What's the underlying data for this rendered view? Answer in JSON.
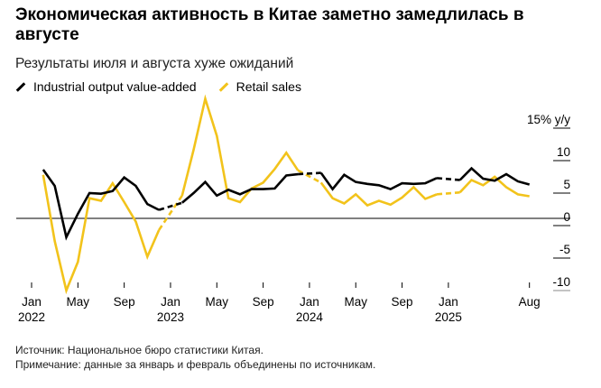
{
  "title": "Экономическая активность в Китае заметно замедлилась в августе",
  "subtitle": "Результаты июля и августа хуже ожиданий",
  "footer": {
    "source": "Источник: Национальное бюро статистики Китая.",
    "note": "Примечание: данные за январь и февраль объединены по источникам."
  },
  "chart_data": {
    "type": "line",
    "ylabel": "15% y/y",
    "ylim": [
      -10,
      15
    ],
    "yticks": [
      "15% y/y",
      "10",
      "5",
      "0",
      "-5",
      "-10"
    ],
    "ytick_values": [
      15,
      10,
      5,
      0,
      -5,
      -10
    ],
    "xticks": [
      {
        "month": "2022-01",
        "label": "Jan",
        "year": "2022"
      },
      {
        "month": "2022-05",
        "label": "May",
        "year": ""
      },
      {
        "month": "2022-09",
        "label": "Sep",
        "year": ""
      },
      {
        "month": "2023-01",
        "label": "Jan",
        "year": "2023"
      },
      {
        "month": "2023-05",
        "label": "May",
        "year": ""
      },
      {
        "month": "2023-09",
        "label": "Sep",
        "year": ""
      },
      {
        "month": "2024-01",
        "label": "Jan",
        "year": "2024"
      },
      {
        "month": "2024-05",
        "label": "May",
        "year": ""
      },
      {
        "month": "2024-09",
        "label": "Sep",
        "year": ""
      },
      {
        "month": "2025-01",
        "label": "Jan",
        "year": "2025"
      },
      {
        "month": "2025-08",
        "label": "Aug",
        "year": ""
      }
    ],
    "x": [
      "2022-02",
      "2022-03",
      "2022-04",
      "2022-05",
      "2022-06",
      "2022-07",
      "2022-08",
      "2022-09",
      "2022-10",
      "2022-11",
      "2022-12",
      "2023-02",
      "2023-03",
      "2023-04",
      "2023-05",
      "2023-06",
      "2023-07",
      "2023-08",
      "2023-09",
      "2023-10",
      "2023-11",
      "2023-12",
      "2024-02",
      "2024-03",
      "2024-04",
      "2024-05",
      "2024-06",
      "2024-07",
      "2024-08",
      "2024-09",
      "2024-10",
      "2024-11",
      "2024-12",
      "2025-02",
      "2025-03",
      "2025-04",
      "2025-05",
      "2025-06",
      "2025-07",
      "2025-08"
    ],
    "series": [
      {
        "name": "Industrial output value-added",
        "color": "#000000",
        "values": [
          7.5,
          5.0,
          -2.9,
          0.7,
          3.9,
          3.8,
          4.2,
          6.3,
          5.0,
          2.2,
          1.3,
          2.4,
          3.9,
          5.6,
          3.5,
          4.4,
          3.7,
          4.5,
          4.5,
          4.6,
          6.6,
          6.8,
          7.0,
          4.5,
          6.7,
          5.6,
          5.3,
          5.1,
          4.5,
          5.4,
          5.3,
          5.4,
          6.2,
          5.9,
          7.7,
          6.1,
          5.8,
          6.8,
          5.7,
          5.2
        ]
      },
      {
        "name": "Retail sales",
        "color": "#f2c31b",
        "values": [
          6.7,
          -3.5,
          -11.1,
          -6.7,
          3.1,
          2.7,
          5.4,
          2.5,
          -0.5,
          -5.9,
          -1.8,
          3.5,
          10.6,
          18.4,
          12.7,
          3.1,
          2.5,
          4.6,
          5.5,
          7.6,
          10.1,
          7.4,
          5.5,
          3.1,
          2.3,
          3.7,
          2.0,
          2.7,
          2.1,
          3.2,
          4.8,
          3.0,
          3.7,
          4.0,
          5.9,
          5.1,
          6.4,
          4.8,
          3.7,
          3.4
        ]
      }
    ],
    "grid": false,
    "legend": "top-left"
  }
}
